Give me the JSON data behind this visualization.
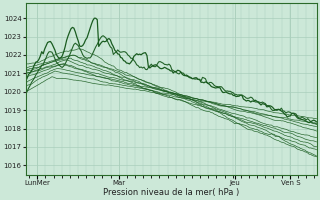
{
  "background_color": "#cce8d8",
  "plot_bg_color": "#cce8d8",
  "line_color": "#1a5c20",
  "grid_color": "#aacfbc",
  "tick_label_color": "#222222",
  "ylabel_values": [
    1016,
    1017,
    1018,
    1019,
    1020,
    1021,
    1022,
    1023,
    1024
  ],
  "ylim": [
    1015.5,
    1024.8
  ],
  "xlabel": "Pression niveau de la mer( hPa )",
  "x_tick_labels": [
    "LunMer",
    "Mar",
    "Jeu",
    "Ven S"
  ],
  "x_tick_positions": [
    0.04,
    0.32,
    0.72,
    0.91
  ],
  "total_points": 200
}
